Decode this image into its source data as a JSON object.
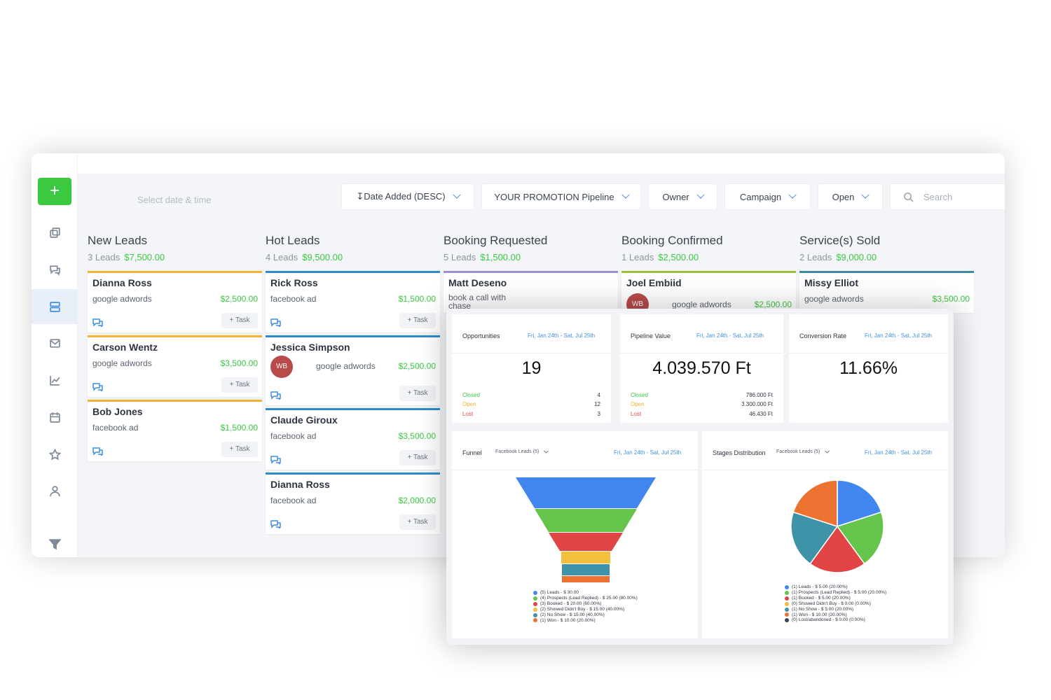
{
  "toolbar": {
    "date_placeholder": "Select date & time",
    "sort_label": "Date Added (DESC)",
    "pipeline_label": "YOUR PROMOTION Pipeline",
    "owner_label": "Owner",
    "campaign_label": "Campaign",
    "status_label": "Open",
    "search_placeholder": "Search"
  },
  "sidebar": {
    "add_label": "+",
    "icons": [
      "copy-icon",
      "chat-icon",
      "pipeline-icon",
      "mail-icon",
      "chart-icon",
      "calendar-icon",
      "star-icon",
      "user-icon",
      "filter-icon"
    ],
    "active": "pipeline-icon"
  },
  "columns": [
    {
      "title": "New Leads",
      "count": "3 Leads",
      "amount": "$7,500.00",
      "color": "#f2b233",
      "cards": [
        {
          "name": "Dianna Ross",
          "source": "google adwords",
          "value": "$2,500.00",
          "task": "+ Task"
        },
        {
          "name": "Carson Wentz",
          "source": "google adwords",
          "value": "$3,500.00",
          "task": "+ Task"
        },
        {
          "name": "Bob Jones",
          "source": "facebook ad",
          "value": "$1,500.00",
          "task": "+ Task"
        }
      ]
    },
    {
      "title": "Hot Leads",
      "count": "4 Leads",
      "amount": "$9,500.00",
      "color": "#2e8bc9",
      "cards": [
        {
          "name": "Rick Ross",
          "source": "facebook ad",
          "value": "$1,500.00",
          "task": "+ Task"
        },
        {
          "name": "Jessica Simpson",
          "source": "google adwords",
          "value": "$2,500.00",
          "task": "+ Task",
          "avatar": "WB"
        },
        {
          "name": "Claude Giroux",
          "source": "facebook ad",
          "value": "$3,500.00",
          "task": "+ Task"
        },
        {
          "name": "Dianna Ross",
          "source": "facebook ad",
          "value": "$2,000.00",
          "task": "+ Task"
        }
      ]
    },
    {
      "title": "Booking Requested",
      "count": "5 Leads",
      "amount": "$1,500.00",
      "color": "#9b8fd0",
      "cards": [
        {
          "name": "Matt Deseno",
          "source": "book a call with chase",
          "value": "",
          "task": ""
        }
      ]
    },
    {
      "title": "Booking Confirmed",
      "count": "1 Leads",
      "amount": "$2,500.00",
      "color": "#9cc23a",
      "cards": [
        {
          "name": "Joel Embiid",
          "source": "google adwords",
          "value": "$2,500.00",
          "task": "",
          "avatar": "WB"
        }
      ]
    },
    {
      "title": "Service(s) Sold",
      "count": "2 Leads",
      "amount": "$9,000.00",
      "color": "#3d8a9c",
      "cards": [
        {
          "name": "Missy Elliot",
          "source": "google adwords",
          "value": "$3,500.00",
          "task": ""
        }
      ]
    }
  ],
  "dashboard": {
    "opportunities": {
      "title": "Opportunities",
      "range": "Fri, Jan 24th - Sat, Jul 25th",
      "total": "19",
      "rows": [
        {
          "label": "Closed",
          "value": "4"
        },
        {
          "label": "Open",
          "value": "12"
        },
        {
          "label": "Lost",
          "value": "3"
        }
      ]
    },
    "pipeline_value": {
      "title": "Pipeline Value",
      "range": "Fri, Jan 24th - Sat, Jul 25th",
      "total": "4.039.570 Ft",
      "rows": [
        {
          "label": "Closed",
          "value": "786.000 Ft"
        },
        {
          "label": "Open",
          "value": "3.300.000 Ft"
        },
        {
          "label": "Lost",
          "value": "46.430 Ft"
        }
      ]
    },
    "conversion": {
      "title": "Conversion Rate",
      "range": "Fri, Jan 24th - Sat, Jul 25th",
      "total": "11.66%"
    },
    "funnel": {
      "title": "Funnel",
      "filter": "Facebook Leads (5)",
      "range": "Fri, Jan 24th - Sat, Jul 25th",
      "legend": [
        "(5) Leads - $ 30.00",
        "(4) Prospects (Lead Replied) - $ 25.00 (80.00%)",
        "(3) Booked - $ 20.00 (60.00%)",
        "(2) Showed Didn't Buy - $ 15.00 (40.00%)",
        "(2) No Show - $ 15.00 (40.00%)",
        "(1) Won - $ 10.00 (20.00%)"
      ]
    },
    "stages": {
      "title": "Stages Distribution",
      "filter": "Facebook Leads (5)",
      "range": "Fri, Jan 24th - Sat, Jul 25th",
      "legend": [
        "(1) Leads - $ 5.00 (20.00%)",
        "(1) Prospects (Lead Replied) - $ 5.00 (20.00%)",
        "(1) Booked - $ 5.00 (20.00%)",
        "(0) Showed Didn't Buy - $ 0.00 (0.00%)",
        "(1) No Show - $ 5.00 (20.00%)",
        "(1) Won - $ 10.00 (20.00%)",
        "(0) Lost/abandoned - $ 0.00 (0.00%)"
      ]
    },
    "colors": {
      "blue": "#4287f0",
      "green": "#64c44b",
      "red": "#e04444",
      "yellow": "#f3c03d",
      "teal": "#3f93a8",
      "orange": "#ec7232",
      "dark": "#3d4550"
    }
  }
}
